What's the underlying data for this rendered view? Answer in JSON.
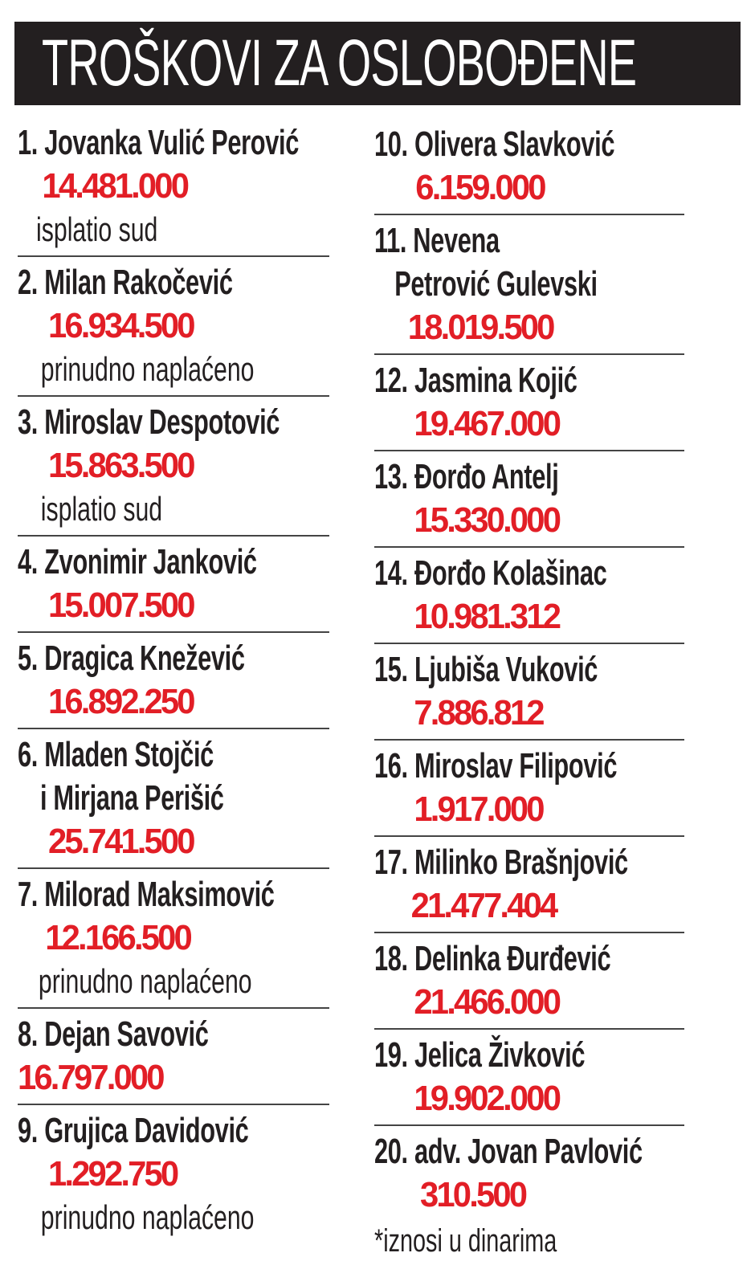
{
  "title": "TROŠKOVI ZA OSLOBOĐENE",
  "accent_color": "#e21e26",
  "header_color": "#231f20",
  "left_column": [
    {
      "name_lines": [
        "1. Jovanka Vulić Perović"
      ],
      "amount": "14.481.000",
      "note": "isplatio sud",
      "indent": 32
    },
    {
      "name_lines": [
        "2. Milan Rakočević"
      ],
      "amount": "16.934.500",
      "note": "prinudno naplaćeno",
      "indent": 40
    },
    {
      "name_lines": [
        "3. Miroslav Despotović"
      ],
      "amount": "15.863.500",
      "note": "isplatio sud",
      "indent": 40
    },
    {
      "name_lines": [
        "4. Zvonimir Janković"
      ],
      "amount": "15.007.500",
      "indent": 40
    },
    {
      "name_lines": [
        "5. Dragica Knežević"
      ],
      "amount": "16.892.250",
      "indent": 40
    },
    {
      "name_lines": [
        "6. Mladen Stojčić",
        "i Mirjana Perišić"
      ],
      "amount": "25.741.500",
      "indent": 40
    },
    {
      "name_lines": [
        "7. Milorad Maksimović"
      ],
      "amount": "12.166.500",
      "note": "prinudno naplaćeno",
      "indent": 36
    },
    {
      "name_lines": [
        "8. Dejan Savović"
      ],
      "amount": "16.797.000",
      "indent": 0
    },
    {
      "name_lines": [
        "9. Grujica Davidović"
      ],
      "amount": "1.292.750",
      "note": "prinudno naplaćeno",
      "indent": 40
    }
  ],
  "right_column": [
    {
      "name_lines": [
        "10. Olivera Slavković"
      ],
      "amount": "6.159.000",
      "indent": 54
    },
    {
      "name_lines": [
        "11. Nevena",
        "Petrović Gulevski"
      ],
      "amount": "18.019.500",
      "indent": 44
    },
    {
      "name_lines": [
        "12. Jasmina Kojić"
      ],
      "amount": "19.467.000",
      "indent": 52
    },
    {
      "name_lines": [
        "13. Đorđo Antelj"
      ],
      "amount": "15.330.000",
      "indent": 52
    },
    {
      "name_lines": [
        "14. Đorđo Kolašinac"
      ],
      "amount": "10.981.312",
      "indent": 52
    },
    {
      "name_lines": [
        "15. Ljubiša Vuković"
      ],
      "amount": "7.886.812",
      "indent": 52
    },
    {
      "name_lines": [
        "16. Miroslav Filipović"
      ],
      "amount": "1.917.000",
      "indent": 52
    },
    {
      "name_lines": [
        "17. Milinko Brašnjović"
      ],
      "amount": "21.477.404",
      "indent": 48
    },
    {
      "name_lines": [
        "18. Delinka Đurđević"
      ],
      "amount": "21.466.000",
      "indent": 52
    },
    {
      "name_lines": [
        "19. Jelica Živković"
      ],
      "amount": "19.902.000",
      "indent": 52
    },
    {
      "name_lines": [
        "20. adv. Jovan Pavlović"
      ],
      "amount": "310.500",
      "indent": 60
    }
  ],
  "footnote": "*iznosi u dinarima"
}
